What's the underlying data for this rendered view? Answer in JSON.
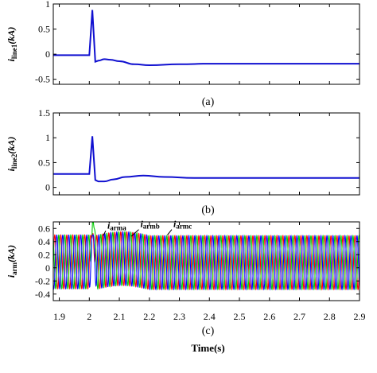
{
  "chart_data": [
    {
      "type": "line",
      "caption": "(a)",
      "ylabel_main": "i",
      "ylabel_sub": "line1",
      "ylabel_unit": "(kA)",
      "ylim": [
        -0.6,
        1.0
      ],
      "yticks": [
        1,
        0.5,
        0,
        -0.5
      ],
      "ytick_labels": [
        "1",
        "0.5",
        "0",
        "-0.5"
      ],
      "xlim": [
        1.88,
        2.9
      ],
      "grid": false,
      "series": [
        {
          "color": "#1010d0",
          "x": [
            1.88,
            2.0,
            2.01,
            2.02,
            2.03,
            2.05,
            2.07,
            2.1,
            2.15,
            2.2,
            2.3,
            2.4,
            2.5,
            2.6,
            2.7,
            2.8,
            2.9
          ],
          "y": [
            -0.02,
            -0.02,
            0.88,
            -0.15,
            -0.13,
            -0.1,
            -0.11,
            -0.14,
            -0.2,
            -0.22,
            -0.2,
            -0.19,
            -0.19,
            -0.19,
            -0.19,
            -0.19,
            -0.19
          ]
        }
      ]
    },
    {
      "type": "line",
      "caption": "(b)",
      "ylabel_main": "i",
      "ylabel_sub": "line2",
      "ylabel_unit": "(kA)",
      "ylim": [
        -0.15,
        1.5
      ],
      "yticks": [
        1.5,
        1,
        0.5,
        0
      ],
      "ytick_labels": [
        "1.5",
        "1",
        "0.5",
        "0"
      ],
      "xlim": [
        1.88,
        2.9
      ],
      "grid": false,
      "series": [
        {
          "color": "#1010d0",
          "x": [
            1.88,
            2.0,
            2.01,
            2.02,
            2.03,
            2.05,
            2.08,
            2.12,
            2.18,
            2.25,
            2.35,
            2.45,
            2.55,
            2.7,
            2.9
          ],
          "y": [
            0.27,
            0.27,
            1.03,
            0.15,
            0.12,
            0.12,
            0.16,
            0.21,
            0.24,
            0.21,
            0.19,
            0.19,
            0.19,
            0.19,
            0.19
          ]
        }
      ]
    },
    {
      "type": "line",
      "caption": "(c)",
      "ylabel_main": "i",
      "ylabel_sub": "arm",
      "ylabel_unit": "(kA)",
      "ylim": [
        -0.5,
        0.7
      ],
      "yticks": [
        0.6,
        0.4,
        0.2,
        0,
        -0.2,
        -0.4
      ],
      "ytick_labels": [
        "0.6",
        "0.4",
        "0.2",
        "0",
        "-0.2",
        "-0.4"
      ],
      "xlim": [
        1.88,
        2.9
      ],
      "xticks": [
        1.9,
        2,
        2.1,
        2.2,
        2.3,
        2.4,
        2.5,
        2.6,
        2.7,
        2.8,
        2.9
      ],
      "xtick_labels": [
        "1.9",
        "2",
        "2.1",
        "2.2",
        "2.3",
        "2.4",
        "2.5",
        "2.6",
        "2.7",
        "2.8",
        "2.9"
      ],
      "xlabel": "Time(s)",
      "grid": false,
      "oscillation_frequency_hz": 50,
      "series": [
        {
          "name": "i_arma",
          "color": "#ff0000",
          "phase_deg": 0,
          "offset_before": 0.09,
          "offset_after": 0.08,
          "amplitude": 0.41,
          "fault_peak": 0.55
        },
        {
          "name": "i_armb",
          "color": "#00cc00",
          "phase_deg": 120,
          "offset_before": 0.09,
          "offset_after": 0.08,
          "amplitude": 0.41,
          "fault_peak": 0.73
        },
        {
          "name": "i_armc",
          "color": "#0000ff",
          "phase_deg": 240,
          "offset_before": 0.09,
          "offset_after": 0.08,
          "amplitude": 0.41,
          "fault_peak": 0.5
        }
      ],
      "annotations": [
        {
          "main": "i",
          "sub": "arma",
          "series": "i_arma"
        },
        {
          "main": "i",
          "sub": "armb",
          "series": "i_armb"
        },
        {
          "main": "i",
          "sub": "armc",
          "series": "i_armc"
        }
      ]
    }
  ]
}
